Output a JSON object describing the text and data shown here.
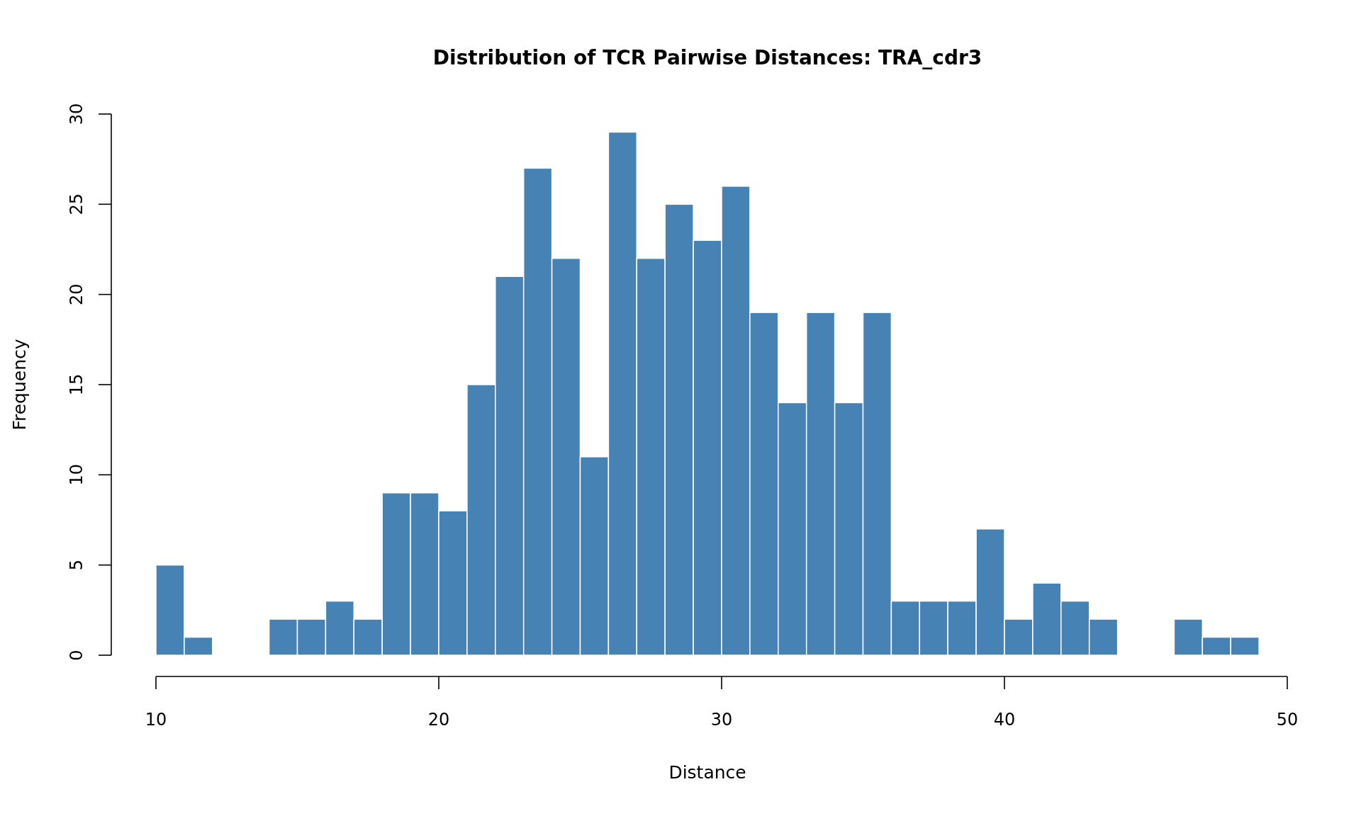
{
  "chart_data": {
    "type": "histogram",
    "title": "Distribution of TCR Pairwise Distances: TRA_cdr3",
    "xlabel": "Distance",
    "ylabel": "Frequency",
    "bins": [
      10,
      11,
      12,
      13,
      14,
      15,
      16,
      17,
      18,
      19,
      20,
      21,
      22,
      23,
      24,
      25,
      26,
      27,
      28,
      29,
      30,
      31,
      32,
      33,
      34,
      35,
      36,
      37,
      38,
      39,
      40,
      41,
      42,
      43,
      44,
      45,
      46,
      47,
      48,
      49
    ],
    "values": [
      5,
      1,
      0,
      0,
      2,
      2,
      3,
      2,
      9,
      9,
      8,
      15,
      21,
      27,
      22,
      11,
      29,
      22,
      25,
      23,
      26,
      19,
      14,
      19,
      14,
      19,
      3,
      3,
      3,
      7,
      2,
      4,
      3,
      2,
      0,
      0,
      2,
      1,
      1
    ],
    "color": "#4682b4",
    "xlim": [
      10,
      50
    ],
    "xticks": [
      10,
      20,
      30,
      40,
      50
    ],
    "ylim": [
      0,
      30
    ],
    "yticks": [
      0,
      5,
      10,
      15,
      20,
      25,
      30
    ]
  }
}
